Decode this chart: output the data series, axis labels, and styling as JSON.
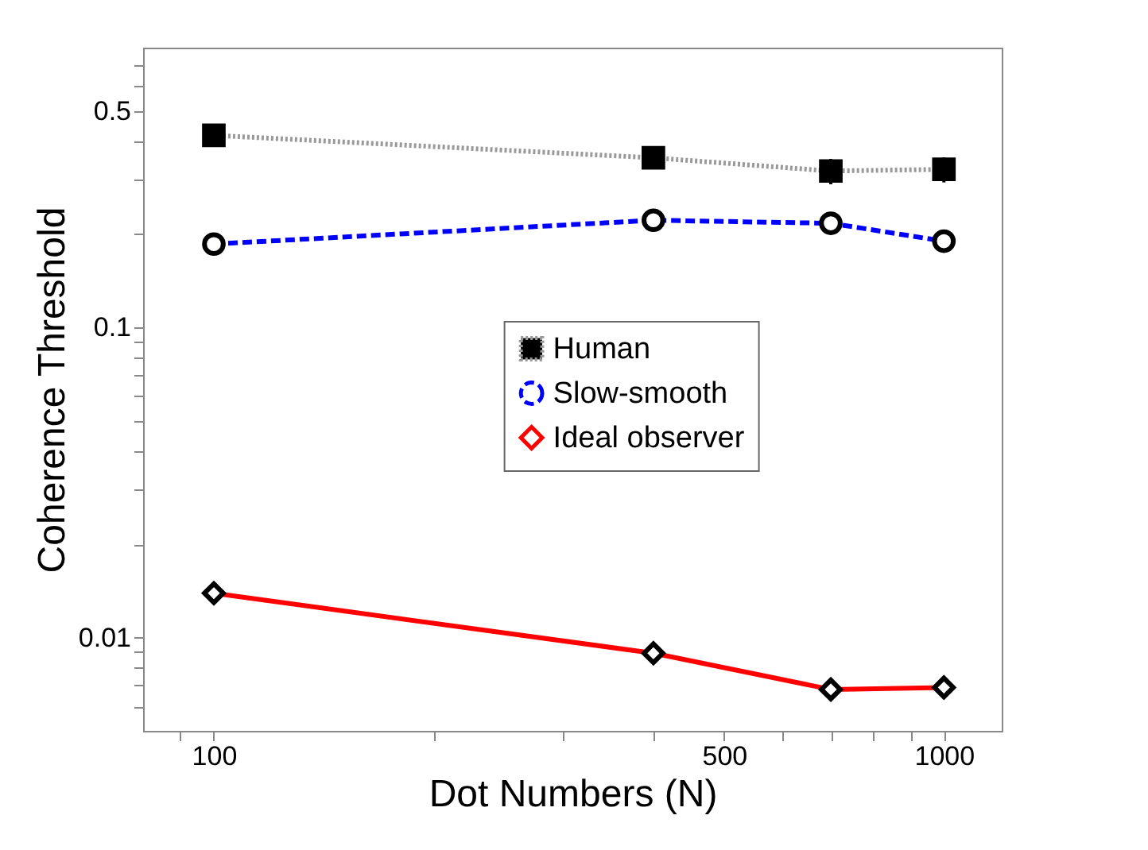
{
  "chart_data": {
    "type": "line",
    "xlabel": "Dot Numbers (N)",
    "ylabel": "Coherence Threshold",
    "x": [
      100,
      400,
      700,
      1000
    ],
    "series": [
      {
        "name": "Human",
        "color": "#999999",
        "values": [
          0.417,
          0.353,
          0.32,
          0.324
        ],
        "errors": [
          0.02,
          0.02,
          0.03,
          0.03
        ],
        "marker": "square",
        "line_style": "dotted"
      },
      {
        "name": "Slow-smooth",
        "color": "#0000ff",
        "values": [
          0.186,
          0.222,
          0.217,
          0.19
        ],
        "marker": "circle",
        "line_style": "dashed"
      },
      {
        "name": "Ideal observer",
        "color": "#ff0000",
        "values": [
          0.0139,
          0.0089,
          0.0068,
          0.0069
        ],
        "marker": "diamond",
        "line_style": "solid"
      }
    ],
    "log": "xy",
    "xlim": [
      80,
      1200
    ],
    "ylim": [
      0.005,
      0.8
    ],
    "xticks": [
      {
        "value": 90,
        "label": null
      },
      100,
      {
        "value": 200,
        "label": null
      },
      {
        "value": 300,
        "label": null
      },
      {
        "value": 400,
        "label": null
      },
      500,
      {
        "value": 600,
        "label": null
      },
      {
        "value": 700,
        "label": null
      },
      {
        "value": 800,
        "label": null
      },
      {
        "value": 900,
        "label": null
      },
      1000
    ],
    "yticks": [
      {
        "value": 0.006,
        "label": null
      },
      {
        "value": 0.007,
        "label": null
      },
      {
        "value": 0.008,
        "label": null
      },
      {
        "value": 0.009,
        "label": null
      },
      0.01,
      {
        "value": 0.02,
        "label": null
      },
      {
        "value": 0.03,
        "label": null
      },
      {
        "value": 0.04,
        "label": null
      },
      {
        "value": 0.05,
        "label": null
      },
      {
        "value": 0.06,
        "label": null
      },
      {
        "value": 0.07,
        "label": null
      },
      {
        "value": 0.08,
        "label": null
      },
      {
        "value": 0.09,
        "label": null
      },
      0.1,
      {
        "value": 0.2,
        "label": null
      },
      {
        "value": 0.3,
        "label": null
      },
      {
        "value": 0.4,
        "label": null
      },
      0.5,
      {
        "value": 0.6,
        "label": null
      },
      {
        "value": 0.7,
        "label": null
      }
    ],
    "grid": false,
    "legend": "right"
  }
}
